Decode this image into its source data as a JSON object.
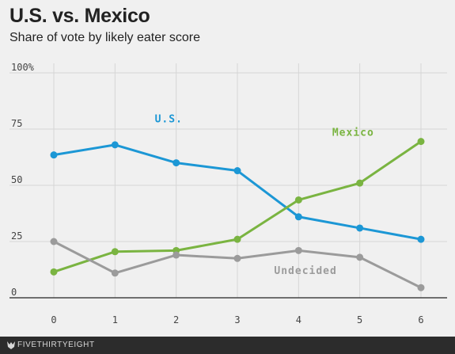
{
  "header": {
    "title": "U.S. vs. Mexico",
    "subtitle": "Share of vote by likely eater score"
  },
  "footer": {
    "brand": "FIVETHIRTYEIGHT",
    "logo_icon": "fivethirtyeight-fox-icon"
  },
  "chart_data": {
    "type": "line",
    "title": "U.S. vs. Mexico",
    "subtitle": "Share of vote by likely eater score",
    "xlabel": "",
    "ylabel": "",
    "x": [
      0,
      1,
      2,
      3,
      4,
      5,
      6
    ],
    "x_tick_labels": [
      "0",
      "1",
      "2",
      "3",
      "4",
      "5",
      "6"
    ],
    "ylim": [
      0,
      100
    ],
    "y_ticks": [
      0,
      25,
      50,
      75,
      100
    ],
    "y_tick_labels": [
      "0",
      "25",
      "50",
      "75",
      "100%"
    ],
    "grid": true,
    "series": [
      {
        "name": "U.S.",
        "color": "#1c97d5",
        "values": [
          63.5,
          68,
          60,
          56.5,
          36,
          31,
          26
        ]
      },
      {
        "name": "Mexico",
        "color": "#7ab441",
        "values": [
          11.5,
          20.5,
          21,
          26,
          43.5,
          51,
          69.5
        ]
      },
      {
        "name": "Undecided",
        "color": "#9b9b9b",
        "values": [
          25,
          11,
          19,
          17.5,
          21,
          18,
          4.5
        ]
      }
    ]
  }
}
